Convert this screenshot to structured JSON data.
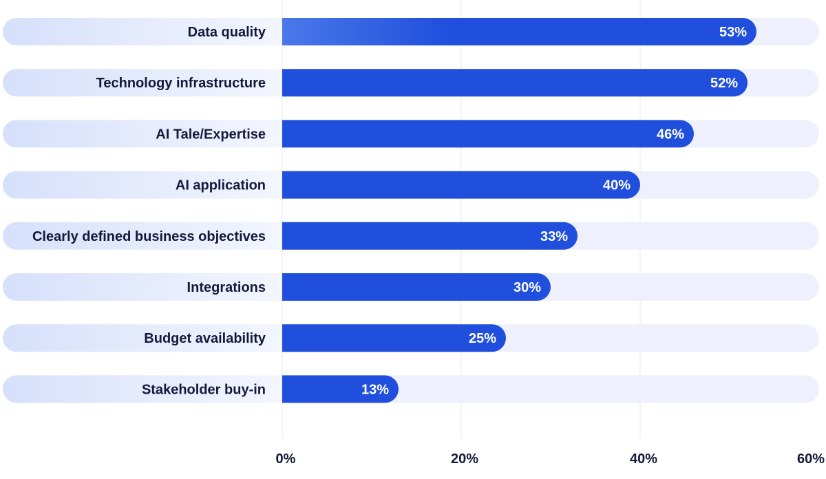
{
  "chart_data": {
    "type": "bar",
    "orientation": "horizontal",
    "categories": [
      "Data quality",
      "Technology infrastructure",
      "AI Tale/Expertise",
      "AI application",
      "Clearly defined business objectives",
      "Integrations",
      "Budget availability",
      "Stakeholder buy-in"
    ],
    "values": [
      53,
      52,
      46,
      40,
      33,
      30,
      25,
      13
    ],
    "value_labels": [
      "53%",
      "52%",
      "46%",
      "40%",
      "33%",
      "30%",
      "25%",
      "13%"
    ],
    "xlim": [
      0,
      60
    ],
    "xticks": [
      0,
      20,
      40,
      60
    ],
    "xtick_labels": [
      "0%",
      "20%",
      "40%",
      "60%"
    ],
    "title": "",
    "xlabel": "",
    "ylabel": "",
    "grid": true,
    "legend": "none"
  },
  "colors": {
    "bar": "#1f4fdc",
    "bar_start": "#4b78ea",
    "track": "#eef1fd",
    "label_pill_left": "#d6e0fb",
    "label_pill_right": "#f3f6fe",
    "grid": "#e6e8ef",
    "text": "#14183a",
    "value_text": "#ffffff"
  }
}
